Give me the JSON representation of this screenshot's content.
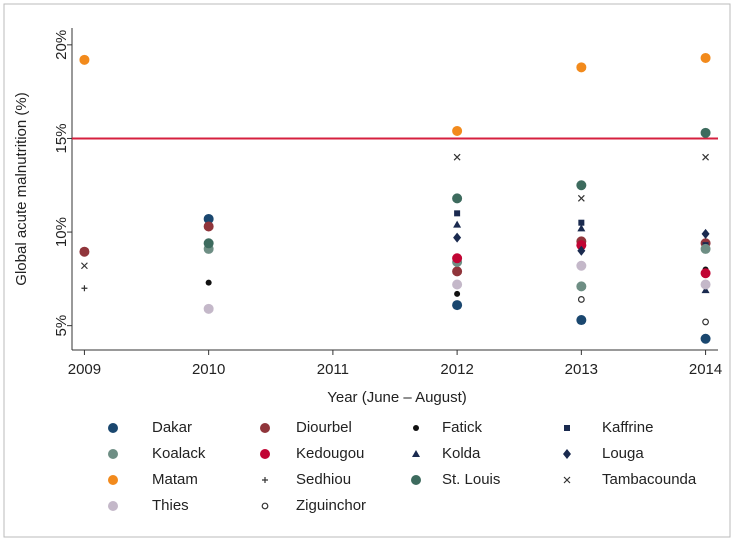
{
  "chart_data": {
    "type": "scatter",
    "x_label": "Year (June – August)",
    "y_label": "Global acute malnutrition (%)",
    "x": [
      2009,
      2010,
      2012,
      2013,
      2014
    ],
    "xlim": [
      2008.9,
      2014.1
    ],
    "xticks": [
      2009,
      2010,
      2011,
      2012,
      2013,
      2014
    ],
    "ylim": [
      3.7,
      20.9
    ],
    "yticks": [
      {
        "value": 5,
        "label": "5%"
      },
      {
        "value": 10,
        "label": "10%"
      },
      {
        "value": 15,
        "label": "15%"
      },
      {
        "value": 20,
        "label": "20%"
      }
    ],
    "reference_line": {
      "value": 15,
      "color": "#d6203f"
    },
    "series": [
      {
        "name": "Dakar",
        "color": "#1a476f",
        "marker": "circle",
        "values": [
          null,
          10.7,
          6.1,
          5.3,
          4.3
        ]
      },
      {
        "name": "Diourbel",
        "color": "#90353b",
        "marker": "circle",
        "values": [
          8.95,
          10.3,
          7.9,
          9.5,
          9.4
        ]
      },
      {
        "name": "Fatick",
        "color": "#111111",
        "marker": "dot",
        "values": [
          null,
          7.3,
          6.7,
          9.2,
          8.0
        ]
      },
      {
        "name": "Kaffrine",
        "color": "#1a2a4f",
        "marker": "square",
        "values": [
          null,
          null,
          11.0,
          10.5,
          9.3
        ]
      },
      {
        "name": "Koalack",
        "color": "#6e8e84",
        "marker": "circle",
        "values": [
          null,
          9.1,
          8.4,
          7.1,
          9.1
        ]
      },
      {
        "name": "Kedougou",
        "color": "#c10534",
        "marker": "circle",
        "values": [
          null,
          null,
          8.6,
          9.3,
          7.8
        ]
      },
      {
        "name": "Kolda",
        "color": "#1a2a4f",
        "marker": "triangle",
        "values": [
          null,
          null,
          10.4,
          10.2,
          6.9
        ]
      },
      {
        "name": "Louga",
        "color": "#1a2a4f",
        "marker": "diamond",
        "values": [
          null,
          null,
          9.7,
          9.0,
          9.9
        ]
      },
      {
        "name": "Matam",
        "color": "#f28a1c",
        "marker": "circle",
        "values": [
          19.2,
          null,
          15.4,
          18.8,
          19.3
        ]
      },
      {
        "name": "Sedhiou",
        "color": "#333333",
        "marker": "plus",
        "values": [
          7.0,
          null,
          null,
          null,
          null
        ]
      },
      {
        "name": "St. Louis",
        "color": "#3d6b5e",
        "marker": "circle",
        "values": [
          null,
          9.4,
          11.8,
          12.5,
          15.3
        ]
      },
      {
        "name": "Tambacounda",
        "color": "#333333",
        "marker": "x",
        "values": [
          8.2,
          null,
          14.0,
          11.8,
          14.0
        ]
      },
      {
        "name": "Thies",
        "color": "#c4b8c9",
        "marker": "circle",
        "values": [
          null,
          5.9,
          7.2,
          8.2,
          7.2
        ]
      },
      {
        "name": "Ziguinchor",
        "color": "#333333",
        "marker": "hollow-circle",
        "values": [
          null,
          null,
          null,
          6.4,
          5.2
        ]
      }
    ]
  }
}
